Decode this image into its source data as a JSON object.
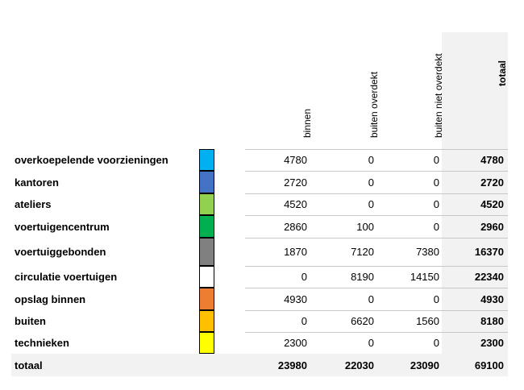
{
  "table": {
    "columns": [
      "binnen",
      "buiten overdekt",
      "buiten niet overdekt",
      "totaal"
    ],
    "rows": [
      {
        "label": "overkoepelende voorzieningen",
        "color": "#00b0f0",
        "values": [
          "4780",
          "0",
          "0",
          "4780"
        ]
      },
      {
        "label": "kantoren",
        "color": "#4472c4",
        "values": [
          "2720",
          "0",
          "0",
          "2720"
        ]
      },
      {
        "label": "ateliers",
        "color": "#92d050",
        "values": [
          "4520",
          "0",
          "0",
          "4520"
        ]
      },
      {
        "label": "voertuigencentrum",
        "color": "#00b050",
        "values": [
          "2860",
          "100",
          "0",
          "2960"
        ]
      },
      {
        "label": "voertuiggebonden",
        "color": "#808080",
        "values": [
          "1870",
          "7120",
          "7380",
          "16370"
        ]
      },
      {
        "label": "circulatie voertuigen",
        "color": "#ffffff",
        "values": [
          "0",
          "8190",
          "14150",
          "22340"
        ]
      },
      {
        "label": "opslag binnen",
        "color": "#ed7d31",
        "values": [
          "4930",
          "0",
          "0",
          "4930"
        ]
      },
      {
        "label": "buiten",
        "color": "#ffc000",
        "values": [
          "0",
          "6620",
          "1560",
          "8180"
        ]
      },
      {
        "label": "technieken",
        "color": "#ffff00",
        "values": [
          "2300",
          "0",
          "0",
          "2300"
        ]
      }
    ],
    "total": {
      "label": "totaal",
      "values": [
        "23980",
        "22030",
        "23090",
        "69100"
      ]
    }
  }
}
